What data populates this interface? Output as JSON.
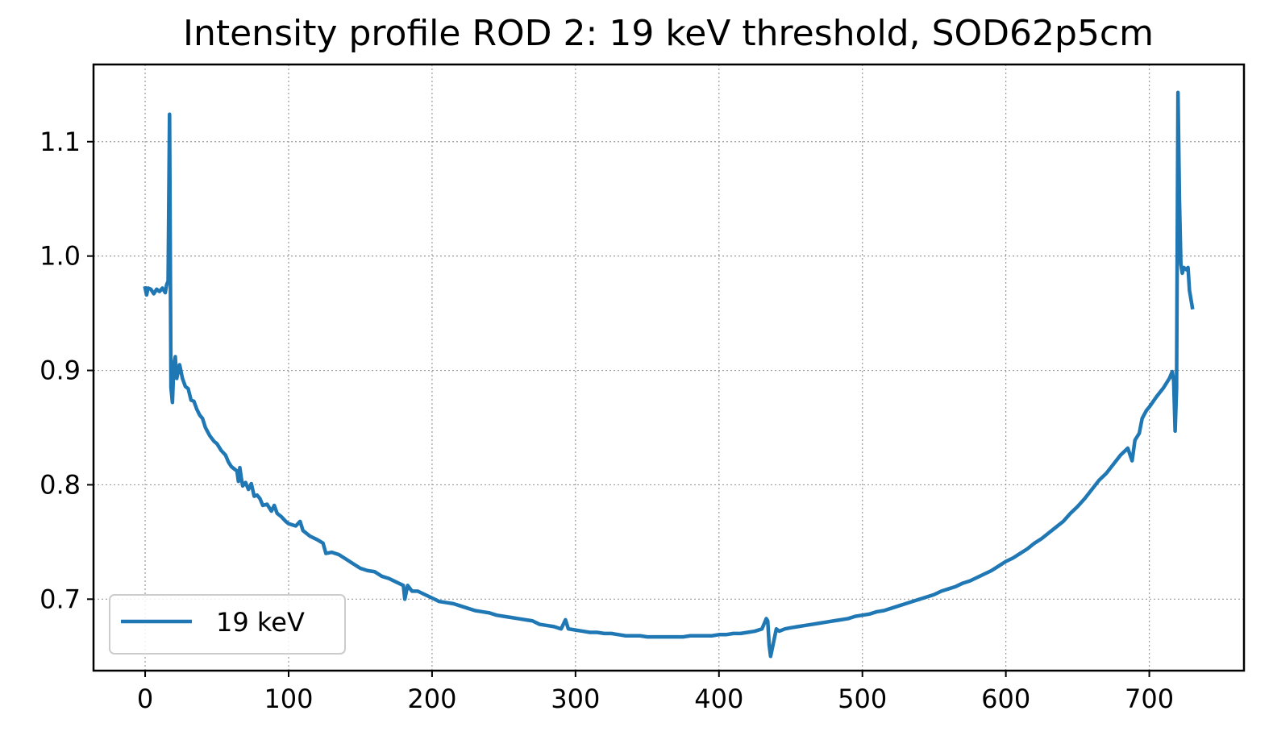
{
  "chart_data": {
    "type": "line",
    "title": "Intensity profile ROD 2: 19 keV threshold, SOD62p5cm",
    "xlabel": "",
    "ylabel": "",
    "xlim": [
      -36,
      766
    ],
    "ylim": [
      0.6375,
      1.1675
    ],
    "xticks": [
      0,
      100,
      200,
      300,
      400,
      500,
      600,
      700
    ],
    "xtick_labels": [
      "0",
      "100",
      "200",
      "300",
      "400",
      "500",
      "600",
      "700"
    ],
    "yticks": [
      0.7,
      0.8,
      0.9,
      1.0,
      1.1
    ],
    "ytick_labels": [
      "0.7",
      "0.8",
      "0.9",
      "1.0",
      "1.1"
    ],
    "grid": true,
    "legend_position": "lower left",
    "series": [
      {
        "name": "19 keV",
        "color": "#1f77b4",
        "points": [
          [
            0,
            0.972
          ],
          [
            1,
            0.966
          ],
          [
            2,
            0.972
          ],
          [
            4,
            0.971
          ],
          [
            6,
            0.967
          ],
          [
            8,
            0.971
          ],
          [
            10,
            0.969
          ],
          [
            12,
            0.972
          ],
          [
            14,
            0.968
          ],
          [
            15,
            0.975
          ],
          [
            16,
            0.978
          ],
          [
            17,
            1.124
          ],
          [
            18,
            0.885
          ],
          [
            19,
            0.872
          ],
          [
            20,
            0.905
          ],
          [
            21,
            0.912
          ],
          [
            22,
            0.893
          ],
          [
            24,
            0.905
          ],
          [
            26,
            0.893
          ],
          [
            28,
            0.886
          ],
          [
            30,
            0.884
          ],
          [
            32,
            0.874
          ],
          [
            34,
            0.873
          ],
          [
            36,
            0.866
          ],
          [
            38,
            0.861
          ],
          [
            40,
            0.858
          ],
          [
            42,
            0.85
          ],
          [
            45,
            0.843
          ],
          [
            48,
            0.838
          ],
          [
            50,
            0.836
          ],
          [
            53,
            0.83
          ],
          [
            56,
            0.826
          ],
          [
            58,
            0.82
          ],
          [
            60,
            0.816
          ],
          [
            62,
            0.814
          ],
          [
            64,
            0.812
          ],
          [
            65,
            0.803
          ],
          [
            66,
            0.815
          ],
          [
            67,
            0.806
          ],
          [
            68,
            0.799
          ],
          [
            70,
            0.802
          ],
          [
            72,
            0.796
          ],
          [
            74,
            0.801
          ],
          [
            76,
            0.79
          ],
          [
            78,
            0.791
          ],
          [
            80,
            0.788
          ],
          [
            82,
            0.782
          ],
          [
            85,
            0.783
          ],
          [
            88,
            0.777
          ],
          [
            90,
            0.782
          ],
          [
            92,
            0.775
          ],
          [
            95,
            0.772
          ],
          [
            98,
            0.768
          ],
          [
            100,
            0.766
          ],
          [
            105,
            0.764
          ],
          [
            108,
            0.768
          ],
          [
            110,
            0.76
          ],
          [
            115,
            0.755
          ],
          [
            120,
            0.752
          ],
          [
            124,
            0.749
          ],
          [
            126,
            0.74
          ],
          [
            130,
            0.741
          ],
          [
            135,
            0.739
          ],
          [
            140,
            0.735
          ],
          [
            145,
            0.731
          ],
          [
            150,
            0.727
          ],
          [
            155,
            0.725
          ],
          [
            160,
            0.724
          ],
          [
            165,
            0.72
          ],
          [
            170,
            0.718
          ],
          [
            175,
            0.715
          ],
          [
            180,
            0.712
          ],
          [
            181,
            0.7
          ],
          [
            183,
            0.712
          ],
          [
            186,
            0.707
          ],
          [
            190,
            0.707
          ],
          [
            195,
            0.704
          ],
          [
            200,
            0.701
          ],
          [
            205,
            0.698
          ],
          [
            210,
            0.697
          ],
          [
            215,
            0.696
          ],
          [
            220,
            0.694
          ],
          [
            225,
            0.692
          ],
          [
            230,
            0.69
          ],
          [
            235,
            0.689
          ],
          [
            240,
            0.688
          ],
          [
            245,
            0.686
          ],
          [
            250,
            0.685
          ],
          [
            255,
            0.684
          ],
          [
            260,
            0.683
          ],
          [
            265,
            0.682
          ],
          [
            270,
            0.681
          ],
          [
            275,
            0.678
          ],
          [
            280,
            0.677
          ],
          [
            285,
            0.676
          ],
          [
            290,
            0.674
          ],
          [
            293,
            0.682
          ],
          [
            295,
            0.674
          ],
          [
            300,
            0.673
          ],
          [
            305,
            0.672
          ],
          [
            310,
            0.671
          ],
          [
            315,
            0.671
          ],
          [
            320,
            0.67
          ],
          [
            325,
            0.67
          ],
          [
            330,
            0.669
          ],
          [
            335,
            0.668
          ],
          [
            340,
            0.668
          ],
          [
            345,
            0.668
          ],
          [
            350,
            0.667
          ],
          [
            355,
            0.667
          ],
          [
            360,
            0.667
          ],
          [
            365,
            0.667
          ],
          [
            370,
            0.667
          ],
          [
            375,
            0.667
          ],
          [
            380,
            0.668
          ],
          [
            385,
            0.668
          ],
          [
            390,
            0.668
          ],
          [
            395,
            0.668
          ],
          [
            400,
            0.669
          ],
          [
            405,
            0.669
          ],
          [
            410,
            0.67
          ],
          [
            415,
            0.67
          ],
          [
            420,
            0.671
          ],
          [
            425,
            0.672
          ],
          [
            430,
            0.674
          ],
          [
            433,
            0.683
          ],
          [
            434,
            0.681
          ],
          [
            435,
            0.66
          ],
          [
            436,
            0.65
          ],
          [
            438,
            0.662
          ],
          [
            440,
            0.674
          ],
          [
            442,
            0.672
          ],
          [
            446,
            0.674
          ],
          [
            450,
            0.675
          ],
          [
            455,
            0.676
          ],
          [
            460,
            0.677
          ],
          [
            465,
            0.678
          ],
          [
            470,
            0.679
          ],
          [
            475,
            0.68
          ],
          [
            480,
            0.681
          ],
          [
            485,
            0.682
          ],
          [
            490,
            0.683
          ],
          [
            495,
            0.685
          ],
          [
            500,
            0.686
          ],
          [
            505,
            0.687
          ],
          [
            510,
            0.689
          ],
          [
            515,
            0.69
          ],
          [
            520,
            0.692
          ],
          [
            525,
            0.694
          ],
          [
            530,
            0.696
          ],
          [
            535,
            0.698
          ],
          [
            540,
            0.7
          ],
          [
            545,
            0.702
          ],
          [
            550,
            0.704
          ],
          [
            555,
            0.707
          ],
          [
            560,
            0.709
          ],
          [
            565,
            0.711
          ],
          [
            570,
            0.714
          ],
          [
            575,
            0.716
          ],
          [
            580,
            0.719
          ],
          [
            585,
            0.722
          ],
          [
            590,
            0.725
          ],
          [
            595,
            0.729
          ],
          [
            600,
            0.733
          ],
          [
            605,
            0.736
          ],
          [
            610,
            0.74
          ],
          [
            615,
            0.744
          ],
          [
            620,
            0.749
          ],
          [
            625,
            0.753
          ],
          [
            630,
            0.758
          ],
          [
            635,
            0.763
          ],
          [
            640,
            0.768
          ],
          [
            645,
            0.775
          ],
          [
            650,
            0.781
          ],
          [
            655,
            0.788
          ],
          [
            660,
            0.796
          ],
          [
            665,
            0.804
          ],
          [
            670,
            0.81
          ],
          [
            675,
            0.818
          ],
          [
            680,
            0.826
          ],
          [
            685,
            0.832
          ],
          [
            688,
            0.821
          ],
          [
            690,
            0.839
          ],
          [
            693,
            0.845
          ],
          [
            695,
            0.858
          ],
          [
            698,
            0.865
          ],
          [
            700,
            0.868
          ],
          [
            705,
            0.877
          ],
          [
            710,
            0.885
          ],
          [
            714,
            0.893
          ],
          [
            716,
            0.899
          ],
          [
            717,
            0.891
          ],
          [
            718,
            0.847
          ],
          [
            719,
            0.884
          ],
          [
            720,
            1.143
          ],
          [
            721,
            1.05
          ],
          [
            722,
            0.993
          ],
          [
            723,
            0.985
          ],
          [
            724,
            0.99
          ],
          [
            726,
            0.988
          ],
          [
            727,
            0.99
          ],
          [
            728,
            0.97
          ],
          [
            730,
            0.955
          ]
        ]
      }
    ]
  }
}
